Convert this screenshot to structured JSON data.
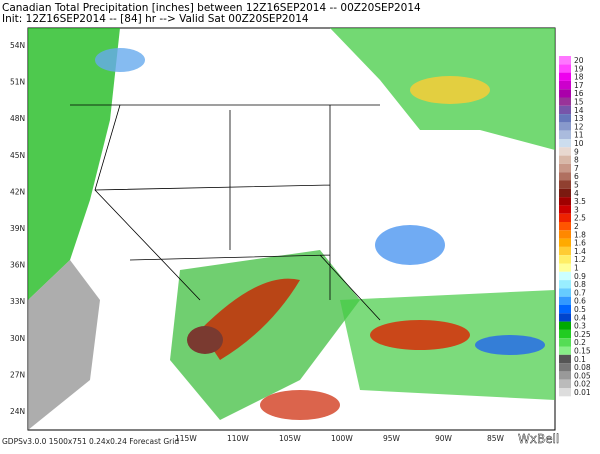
{
  "header": {
    "title": "Canadian Total Precipitation [inches] between 12Z16SEP2014 -- 00Z20SEP2014",
    "subtitle": "Init: 12Z16SEP2014 -- [84] hr --> Valid Sat 00Z20SEP2014"
  },
  "map": {
    "lat_labels": [
      "54N",
      "51N",
      "48N",
      "45N",
      "42N",
      "39N",
      "36N",
      "33N",
      "30N",
      "27N",
      "24N"
    ],
    "lon_labels": [
      "115W",
      "110W",
      "105W",
      "100W",
      "95W",
      "90W",
      "85W"
    ]
  },
  "legend": {
    "items": [
      {
        "label": "20",
        "color": "#ff77ff"
      },
      {
        "label": "19",
        "color": "#ff44ff"
      },
      {
        "label": "18",
        "color": "#ee00ee"
      },
      {
        "label": "17",
        "color": "#cc00cc"
      },
      {
        "label": "16",
        "color": "#aa00aa"
      },
      {
        "label": "15",
        "color": "#993399"
      },
      {
        "label": "14",
        "color": "#7755aa"
      },
      {
        "label": "13",
        "color": "#6677bb"
      },
      {
        "label": "12",
        "color": "#8899cc"
      },
      {
        "label": "11",
        "color": "#aabbdd"
      },
      {
        "label": "10",
        "color": "#ccddee"
      },
      {
        "label": "9",
        "color": "#e8d8d0"
      },
      {
        "label": "8",
        "color": "#d8b8a8"
      },
      {
        "label": "7",
        "color": "#c89888"
      },
      {
        "label": "6",
        "color": "#b07060"
      },
      {
        "label": "5",
        "color": "#904030"
      },
      {
        "label": "4",
        "color": "#7a1a10"
      },
      {
        "label": "3.5",
        "color": "#a00000"
      },
      {
        "label": "3",
        "color": "#cc0000"
      },
      {
        "label": "2.5",
        "color": "#ee2200"
      },
      {
        "label": "2",
        "color": "#ff5500"
      },
      {
        "label": "1.8",
        "color": "#ff8800"
      },
      {
        "label": "1.6",
        "color": "#ffaa00"
      },
      {
        "label": "1.4",
        "color": "#ffcc33"
      },
      {
        "label": "1.2",
        "color": "#ffee66"
      },
      {
        "label": "1",
        "color": "#ffff99"
      },
      {
        "label": "0.9",
        "color": "#ccffff"
      },
      {
        "label": "0.8",
        "color": "#99eeff"
      },
      {
        "label": "0.7",
        "color": "#66ccff"
      },
      {
        "label": "0.6",
        "color": "#3399ff"
      },
      {
        "label": "0.5",
        "color": "#0066ff"
      },
      {
        "label": "0.4",
        "color": "#0044cc"
      },
      {
        "label": "0.3",
        "color": "#00aa00"
      },
      {
        "label": "0.25",
        "color": "#22cc22"
      },
      {
        "label": "0.2",
        "color": "#55dd55"
      },
      {
        "label": "0.15",
        "color": "#88ee88"
      },
      {
        "label": "0.1",
        "color": "#555555"
      },
      {
        "label": "0.08",
        "color": "#777777"
      },
      {
        "label": "0.05",
        "color": "#999999"
      },
      {
        "label": "0.02",
        "color": "#bbbbbb"
      },
      {
        "label": "0.01",
        "color": "#dddddd"
      }
    ]
  },
  "footer": {
    "grid_info": "GDPSv3.0.0 1500x751 0.24x0.24 Forecast Grid",
    "logo": "WxBell"
  }
}
